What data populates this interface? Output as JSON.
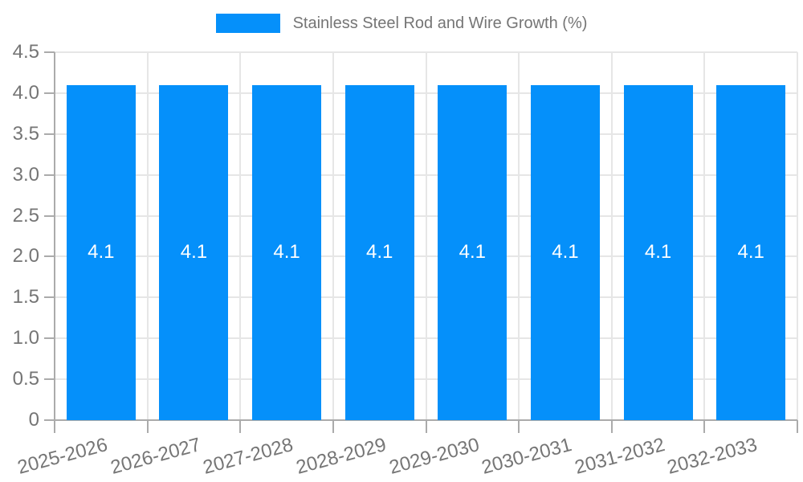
{
  "legend": {
    "label": "Stainless Steel Rod and Wire Growth (%)"
  },
  "chart_data": {
    "type": "bar",
    "title": "",
    "xlabel": "",
    "ylabel": "",
    "legend": "Stainless Steel Rod and Wire Growth (%)",
    "legend_position": "top",
    "grid": true,
    "categories": [
      "2025-2026",
      "2026-2027",
      "2027-2028",
      "2028-2029",
      "2029-2030",
      "2030-2031",
      "2031-2032",
      "2032-2033"
    ],
    "values": [
      4.1,
      4.1,
      4.1,
      4.1,
      4.1,
      4.1,
      4.1,
      4.1
    ],
    "value_labels": [
      "4.1",
      "4.1",
      "4.1",
      "4.1",
      "4.1",
      "4.1",
      "4.1",
      "4.1"
    ],
    "ylim": [
      0,
      4.5
    ],
    "ytick_step": 0.5,
    "yticks": [
      "0",
      "0.5",
      "1.0",
      "1.5",
      "2.0",
      "2.5",
      "3.0",
      "3.5",
      "4.0",
      "4.5"
    ],
    "colors": {
      "bar": "#0590fa",
      "grid": "#e6e6e6",
      "axis": "#ababab",
      "tick_text": "#757575",
      "bar_label": "#ffffff",
      "legend_text": "#757575"
    }
  }
}
